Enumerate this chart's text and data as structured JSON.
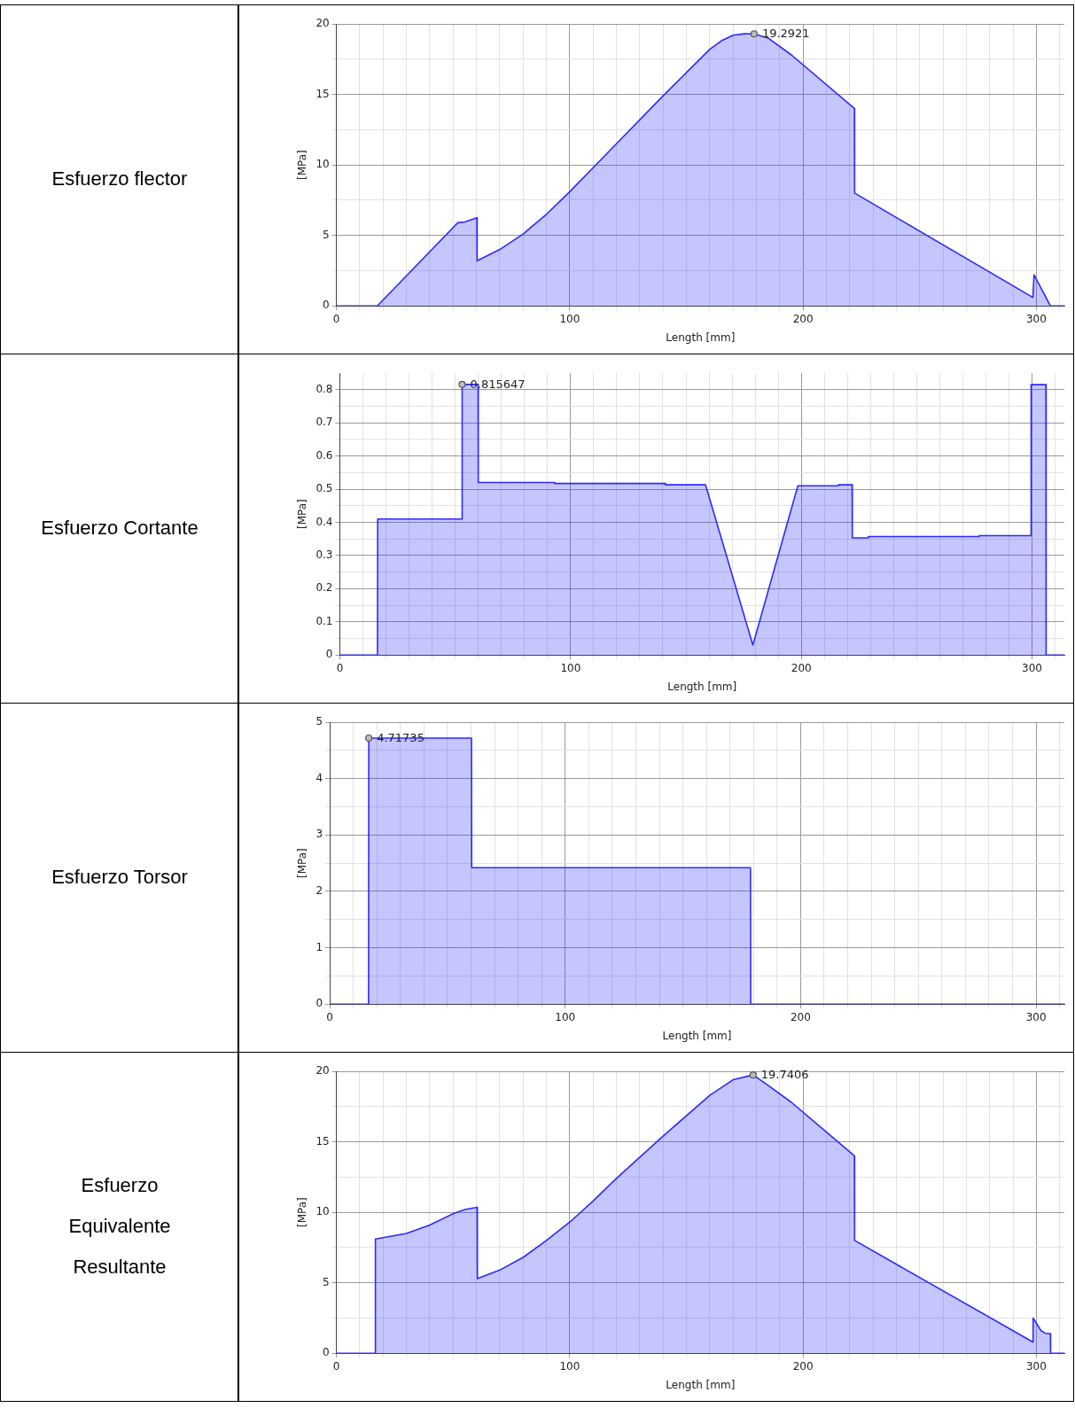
{
  "chart_data": [
    {
      "type": "area",
      "xlabel": "Length [mm]",
      "ylabel": "[MPa]",
      "grid": true,
      "xlim": [
        0,
        312
      ],
      "ylim": [
        0,
        20
      ],
      "xticks": [
        0,
        {
          "value": 10,
          "label": null
        },
        {
          "value": 20,
          "label": null
        },
        {
          "value": 30,
          "label": null
        },
        {
          "value": 40,
          "label": null
        },
        {
          "value": 50,
          "label": null
        },
        {
          "value": 60,
          "label": null
        },
        {
          "value": 70,
          "label": null
        },
        {
          "value": 80,
          "label": null
        },
        {
          "value": 90,
          "label": null
        },
        100,
        {
          "value": 110,
          "label": null
        },
        {
          "value": 120,
          "label": null
        },
        {
          "value": 130,
          "label": null
        },
        {
          "value": 140,
          "label": null
        },
        {
          "value": 150,
          "label": null
        },
        {
          "value": 160,
          "label": null
        },
        {
          "value": 170,
          "label": null
        },
        {
          "value": 180,
          "label": null
        },
        {
          "value": 190,
          "label": null
        },
        200,
        {
          "value": 210,
          "label": null
        },
        {
          "value": 220,
          "label": null
        },
        {
          "value": 230,
          "label": null
        },
        {
          "value": 240,
          "label": null
        },
        {
          "value": 250,
          "label": null
        },
        {
          "value": 260,
          "label": null
        },
        {
          "value": 270,
          "label": null
        },
        {
          "value": 280,
          "label": null
        },
        {
          "value": 290,
          "label": null
        },
        300,
        {
          "value": 310,
          "label": null
        }
      ],
      "yticks": [
        0,
        {
          "value": 2.5,
          "label": null
        },
        5,
        {
          "value": 7.5,
          "label": null
        },
        10,
        {
          "value": 12.5,
          "label": null
        },
        15,
        {
          "value": 17.5,
          "label": null
        },
        20
      ],
      "x": [
        0,
        17.5,
        52,
        55,
        60.2,
        60.3,
        70,
        80,
        90,
        100,
        110,
        120,
        140,
        160,
        165,
        170,
        175,
        179,
        185,
        195,
        222,
        222.1,
        298.5,
        299,
        306,
        312
      ],
      "series": [
        {
          "color": "#2b2bff",
          "values": [
            0,
            0,
            5.9,
            5.95,
            6.25,
            3.2,
            4.0,
            5.1,
            6.5,
            8.1,
            9.8,
            11.5,
            14.9,
            18.2,
            18.8,
            19.2,
            19.3,
            19.2921,
            19.0,
            17.8,
            14,
            8,
            0.6,
            2.2,
            0,
            0
          ]
        }
      ],
      "annotations": [
        "Esfuerzo flector",
        {
          "text": "19.2921",
          "x": 179,
          "y": 19.2921
        }
      ]
    },
    {
      "type": "area",
      "xlabel": "Length [mm]",
      "ylabel": "[MPa]",
      "grid": true,
      "xlim": [
        0,
        314
      ],
      "ylim": [
        0,
        0.85
      ],
      "xticks": [
        0,
        {
          "value": 10,
          "label": null
        },
        {
          "value": 20,
          "label": null
        },
        {
          "value": 30,
          "label": null
        },
        {
          "value": 40,
          "label": null
        },
        {
          "value": 50,
          "label": null
        },
        {
          "value": 60,
          "label": null
        },
        {
          "value": 70,
          "label": null
        },
        {
          "value": 80,
          "label": null
        },
        {
          "value": 90,
          "label": null
        },
        100,
        {
          "value": 110,
          "label": null
        },
        {
          "value": 120,
          "label": null
        },
        {
          "value": 130,
          "label": null
        },
        {
          "value": 140,
          "label": null
        },
        {
          "value": 150,
          "label": null
        },
        {
          "value": 160,
          "label": null
        },
        {
          "value": 170,
          "label": null
        },
        {
          "value": 180,
          "label": null
        },
        {
          "value": 190,
          "label": null
        },
        200,
        {
          "value": 210,
          "label": null
        },
        {
          "value": 220,
          "label": null
        },
        {
          "value": 230,
          "label": null
        },
        {
          "value": 240,
          "label": null
        },
        {
          "value": 250,
          "label": null
        },
        {
          "value": 260,
          "label": null
        },
        {
          "value": 270,
          "label": null
        },
        {
          "value": 280,
          "label": null
        },
        {
          "value": 290,
          "label": null
        },
        300,
        {
          "value": 310,
          "label": null
        }
      ],
      "yticks": [
        0,
        {
          "value": 0.05,
          "label": null
        },
        0.1,
        {
          "value": 0.15,
          "label": null
        },
        0.2,
        {
          "value": 0.25,
          "label": null
        },
        0.3,
        {
          "value": 0.35,
          "label": null
        },
        0.4,
        {
          "value": 0.45,
          "label": null
        },
        0.5,
        {
          "value": 0.55,
          "label": null
        },
        0.6,
        {
          "value": 0.65,
          "label": null
        },
        0.7,
        {
          "value": 0.75,
          "label": null
        },
        0.8
      ],
      "x": [
        0,
        16.3,
        16.4,
        52.9,
        53,
        59.9,
        60,
        93,
        93.1,
        141,
        141.1,
        158.5,
        179,
        198.5,
        216,
        216.1,
        222,
        222.1,
        229,
        229.1,
        277,
        277.1,
        299.5,
        299.6,
        306,
        306.1,
        314
      ],
      "series": [
        {
          "color": "#2b2bff",
          "values": [
            0,
            0,
            0.41,
            0.41,
            0.815647,
            0.815647,
            0.52,
            0.52,
            0.517,
            0.517,
            0.513,
            0.513,
            0.03,
            0.51,
            0.51,
            0.513,
            0.513,
            0.353,
            0.353,
            0.357,
            0.357,
            0.36,
            0.36,
            0.815,
            0.815,
            0,
            0
          ]
        }
      ],
      "annotations": [
        "Esfuerzo Cortante",
        {
          "text": "0.815647",
          "x": 53,
          "y": 0.815647
        }
      ]
    },
    {
      "type": "area",
      "xlabel": "Length [mm]",
      "ylabel": "[MPa]",
      "grid": true,
      "xlim": [
        0,
        312
      ],
      "ylim": [
        0,
        5
      ],
      "xticks": [
        0,
        {
          "value": 10,
          "label": null
        },
        {
          "value": 20,
          "label": null
        },
        {
          "value": 30,
          "label": null
        },
        {
          "value": 40,
          "label": null
        },
        {
          "value": 50,
          "label": null
        },
        {
          "value": 60,
          "label": null
        },
        {
          "value": 70,
          "label": null
        },
        {
          "value": 80,
          "label": null
        },
        {
          "value": 90,
          "label": null
        },
        100,
        {
          "value": 110,
          "label": null
        },
        {
          "value": 120,
          "label": null
        },
        {
          "value": 130,
          "label": null
        },
        {
          "value": 140,
          "label": null
        },
        {
          "value": 150,
          "label": null
        },
        {
          "value": 160,
          "label": null
        },
        {
          "value": 170,
          "label": null
        },
        {
          "value": 180,
          "label": null
        },
        {
          "value": 190,
          "label": null
        },
        200,
        {
          "value": 210,
          "label": null
        },
        {
          "value": 220,
          "label": null
        },
        {
          "value": 230,
          "label": null
        },
        {
          "value": 240,
          "label": null
        },
        {
          "value": 250,
          "label": null
        },
        {
          "value": 260,
          "label": null
        },
        {
          "value": 270,
          "label": null
        },
        {
          "value": 280,
          "label": null
        },
        {
          "value": 290,
          "label": null
        },
        300,
        {
          "value": 310,
          "label": null
        }
      ],
      "yticks": [
        0,
        {
          "value": 0.5,
          "label": null
        },
        1,
        {
          "value": 1.5,
          "label": null
        },
        2,
        {
          "value": 2.5,
          "label": null
        },
        3,
        {
          "value": 3.5,
          "label": null
        },
        4,
        {
          "value": 4.5,
          "label": null
        },
        5
      ],
      "x": [
        0,
        16.5,
        16.6,
        60.2,
        60.3,
        178.7,
        178.8,
        312
      ],
      "series": [
        {
          "color": "#2b2bff",
          "values": [
            0,
            0,
            4.71735,
            4.71735,
            2.42,
            2.42,
            0,
            0
          ]
        }
      ],
      "annotations": [
        "Esfuerzo Torsor",
        {
          "text": "4.71735",
          "x": 16.6,
          "y": 4.71735
        }
      ]
    },
    {
      "type": "area",
      "xlabel": "Length [mm]",
      "ylabel": "[MPa]",
      "grid": true,
      "xlim": [
        0,
        312
      ],
      "ylim": [
        0,
        20
      ],
      "xticks": [
        0,
        {
          "value": 10,
          "label": null
        },
        {
          "value": 20,
          "label": null
        },
        {
          "value": 30,
          "label": null
        },
        {
          "value": 40,
          "label": null
        },
        {
          "value": 50,
          "label": null
        },
        {
          "value": 60,
          "label": null
        },
        {
          "value": 70,
          "label": null
        },
        {
          "value": 80,
          "label": null
        },
        {
          "value": 90,
          "label": null
        },
        100,
        {
          "value": 110,
          "label": null
        },
        {
          "value": 120,
          "label": null
        },
        {
          "value": 130,
          "label": null
        },
        {
          "value": 140,
          "label": null
        },
        {
          "value": 150,
          "label": null
        },
        {
          "value": 160,
          "label": null
        },
        {
          "value": 170,
          "label": null
        },
        {
          "value": 180,
          "label": null
        },
        {
          "value": 190,
          "label": null
        },
        200,
        {
          "value": 210,
          "label": null
        },
        {
          "value": 220,
          "label": null
        },
        {
          "value": 230,
          "label": null
        },
        {
          "value": 240,
          "label": null
        },
        {
          "value": 250,
          "label": null
        },
        {
          "value": 260,
          "label": null
        },
        {
          "value": 270,
          "label": null
        },
        {
          "value": 280,
          "label": null
        },
        {
          "value": 290,
          "label": null
        },
        300,
        {
          "value": 310,
          "label": null
        }
      ],
      "yticks": [
        0,
        {
          "value": 2.5,
          "label": null
        },
        5,
        {
          "value": 7.5,
          "label": null
        },
        10,
        {
          "value": 12.5,
          "label": null
        },
        15,
        {
          "value": 17.5,
          "label": null
        },
        20
      ],
      "x": [
        0,
        16.6,
        16.7,
        20,
        30,
        40,
        50,
        55,
        60.3,
        60.4,
        70,
        80,
        90,
        100,
        110,
        120,
        140,
        160,
        170,
        178.6,
        185,
        195,
        222,
        222.1,
        298.5,
        298.6,
        302,
        304,
        306,
        306.1,
        312
      ],
      "series": [
        {
          "color": "#2b2bff",
          "values": [
            0,
            0,
            8.1,
            8.2,
            8.5,
            9.1,
            9.9,
            10.2,
            10.35,
            5.3,
            5.9,
            6.8,
            8.0,
            9.3,
            10.8,
            12.4,
            15.4,
            18.3,
            19.4,
            19.7406,
            19.0,
            17.8,
            14,
            8,
            0.8,
            2.5,
            1.6,
            1.4,
            1.4,
            0,
            0
          ]
        }
      ],
      "annotations": [
        "Esfuerzo Equivalente Resultante",
        {
          "text": "19.7406",
          "x": 178.6,
          "y": 19.7406
        }
      ]
    }
  ]
}
